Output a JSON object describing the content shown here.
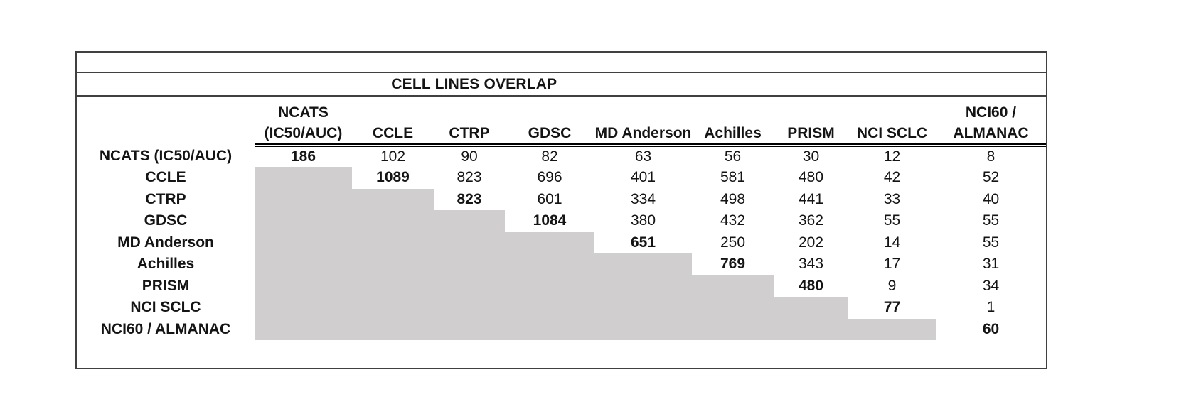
{
  "chart_data": {
    "type": "table",
    "title": "CELL LINES OVERLAP",
    "description_layout": {
      "structure": "symmetric overlap matrix, values shown in upper triangle only",
      "diagonal": "bold values",
      "lower_triangle": "shaded gray, empty",
      "header_underline": "double line under column headers"
    },
    "row_labels": [
      "NCATS (IC50/AUC)",
      "CCLE",
      "CTRP",
      "GDSC",
      "MD Anderson",
      "Achilles",
      "PRISM",
      "NCI SCLC",
      "NCI60 / ALMANAC"
    ],
    "column_headers": [
      [
        "NCATS",
        "(IC50/AUC)"
      ],
      [
        "CCLE"
      ],
      [
        "CTRP"
      ],
      [
        "GDSC"
      ],
      [
        "MD Anderson"
      ],
      [
        "Achilles"
      ],
      [
        "PRISM"
      ],
      [
        "NCI SCLC"
      ],
      [
        "NCI60 /",
        "ALMANAC"
      ]
    ],
    "matrix": [
      [
        186,
        102,
        90,
        82,
        63,
        56,
        30,
        12,
        8
      ],
      [
        null,
        1089,
        823,
        696,
        401,
        581,
        480,
        42,
        52
      ],
      [
        null,
        null,
        823,
        601,
        334,
        498,
        441,
        33,
        40
      ],
      [
        null,
        null,
        null,
        1084,
        380,
        432,
        362,
        55,
        55
      ],
      [
        null,
        null,
        null,
        null,
        651,
        250,
        202,
        14,
        55
      ],
      [
        null,
        null,
        null,
        null,
        null,
        769,
        343,
        17,
        31
      ],
      [
        null,
        null,
        null,
        null,
        null,
        null,
        480,
        9,
        34
      ],
      [
        null,
        null,
        null,
        null,
        null,
        null,
        null,
        77,
        1
      ],
      [
        null,
        null,
        null,
        null,
        null,
        null,
        null,
        null,
        60
      ]
    ],
    "colors": {
      "shaded_cell": "#d0cece",
      "frame_border": "#404040",
      "header_underline": "#000000",
      "text": "#141414",
      "background": "#ffffff"
    }
  }
}
